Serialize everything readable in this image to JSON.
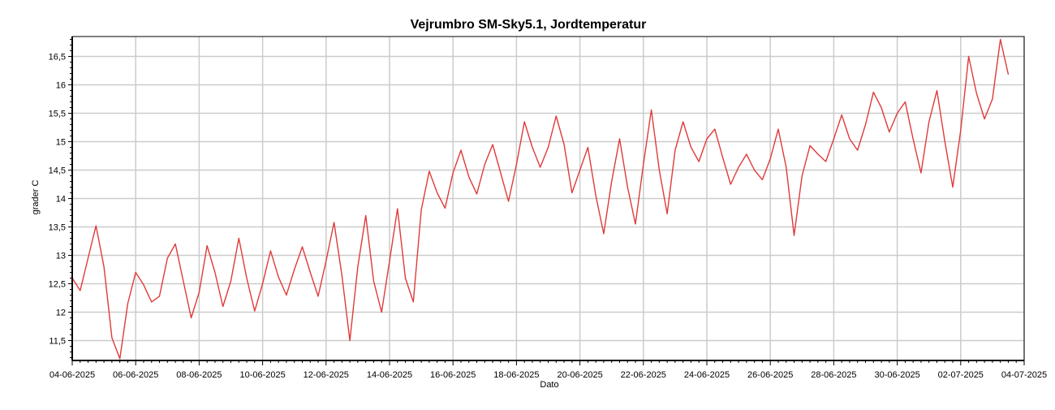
{
  "chart_data": {
    "type": "line",
    "title": "Vejrumbro SM-Sky5.1, Jordtemperatur",
    "xlabel": "Dato",
    "ylabel": "grader C",
    "x_ticks": [
      "04-06-2025",
      "06-06-2025",
      "08-06-2025",
      "10-06-2025",
      "12-06-2025",
      "14-06-2025",
      "16-06-2025",
      "18-06-2025",
      "20-06-2025",
      "22-06-2025",
      "24-06-2025",
      "26-06-2025",
      "28-06-2025",
      "30-06-2025",
      "02-07-2025",
      "04-07-2025"
    ],
    "y_ticks": [
      "11,5",
      "12",
      "12,5",
      "13",
      "13,5",
      "14",
      "14,5",
      "15",
      "15,5",
      "16",
      "16,5"
    ],
    "y_tick_values": [
      11.5,
      12,
      12.5,
      13,
      13.5,
      14,
      14.5,
      15,
      15.5,
      16,
      16.5
    ],
    "xlim": [
      "2025-06-04",
      "2025-07-04"
    ],
    "ylim": [
      11.15,
      16.85
    ],
    "grid": true,
    "colors": {
      "line": "#e03a3a",
      "grid": "#cccccc",
      "axis": "#000000"
    },
    "series": [
      {
        "x": [
          "2025-06-04 00:00",
          "2025-06-04 06:00",
          "2025-06-04 12:00",
          "2025-06-04 18:00",
          "2025-06-05 00:00",
          "2025-06-05 06:00",
          "2025-06-05 12:00",
          "2025-06-05 18:00",
          "2025-06-06 00:00",
          "2025-06-06 06:00",
          "2025-06-06 12:00",
          "2025-06-06 18:00",
          "2025-06-07 00:00",
          "2025-06-07 06:00",
          "2025-06-07 12:00",
          "2025-06-07 18:00",
          "2025-06-08 00:00",
          "2025-06-08 06:00",
          "2025-06-08 12:00",
          "2025-06-08 18:00",
          "2025-06-09 00:00",
          "2025-06-09 06:00",
          "2025-06-09 12:00",
          "2025-06-09 18:00",
          "2025-06-10 00:00",
          "2025-06-10 06:00",
          "2025-06-10 12:00",
          "2025-06-10 18:00",
          "2025-06-11 00:00",
          "2025-06-11 06:00",
          "2025-06-11 12:00",
          "2025-06-11 18:00",
          "2025-06-12 00:00",
          "2025-06-12 06:00",
          "2025-06-12 12:00",
          "2025-06-12 18:00",
          "2025-06-13 00:00",
          "2025-06-13 06:00",
          "2025-06-13 12:00",
          "2025-06-13 18:00",
          "2025-06-14 00:00",
          "2025-06-14 06:00",
          "2025-06-14 12:00",
          "2025-06-14 18:00",
          "2025-06-15 00:00",
          "2025-06-15 06:00",
          "2025-06-15 12:00",
          "2025-06-15 18:00",
          "2025-06-16 00:00",
          "2025-06-16 06:00",
          "2025-06-16 12:00",
          "2025-06-16 18:00",
          "2025-06-17 00:00",
          "2025-06-17 06:00",
          "2025-06-17 12:00",
          "2025-06-17 18:00",
          "2025-06-18 00:00",
          "2025-06-18 06:00",
          "2025-06-18 12:00",
          "2025-06-18 18:00",
          "2025-06-19 00:00",
          "2025-06-19 06:00",
          "2025-06-19 12:00",
          "2025-06-19 18:00",
          "2025-06-20 00:00",
          "2025-06-20 06:00",
          "2025-06-20 12:00",
          "2025-06-20 18:00",
          "2025-06-21 00:00",
          "2025-06-21 06:00",
          "2025-06-21 12:00",
          "2025-06-21 18:00",
          "2025-06-22 00:00",
          "2025-06-22 06:00",
          "2025-06-22 12:00",
          "2025-06-22 18:00",
          "2025-06-23 00:00",
          "2025-06-23 06:00",
          "2025-06-23 12:00",
          "2025-06-23 18:00",
          "2025-06-24 00:00",
          "2025-06-24 06:00",
          "2025-06-24 12:00",
          "2025-06-24 18:00",
          "2025-06-25 00:00",
          "2025-06-25 06:00",
          "2025-06-25 12:00",
          "2025-06-25 18:00",
          "2025-06-26 00:00",
          "2025-06-26 06:00",
          "2025-06-26 12:00",
          "2025-06-26 18:00",
          "2025-06-27 00:00",
          "2025-06-27 06:00",
          "2025-06-27 12:00",
          "2025-06-27 18:00",
          "2025-06-28 00:00",
          "2025-06-28 06:00",
          "2025-06-28 12:00",
          "2025-06-28 18:00",
          "2025-06-29 00:00",
          "2025-06-29 06:00",
          "2025-06-29 12:00",
          "2025-06-29 18:00",
          "2025-06-30 00:00",
          "2025-06-30 06:00",
          "2025-06-30 12:00",
          "2025-06-30 18:00",
          "2025-07-01 00:00",
          "2025-07-01 06:00",
          "2025-07-01 12:00",
          "2025-07-01 18:00",
          "2025-07-02 00:00",
          "2025-07-02 06:00",
          "2025-07-02 12:00",
          "2025-07-02 18:00",
          "2025-07-03 00:00",
          "2025-07-03 06:00",
          "2025-07-03 12:00"
        ],
        "values": [
          12.6,
          12.38,
          12.95,
          13.52,
          12.8,
          11.55,
          11.18,
          12.15,
          12.7,
          12.48,
          12.18,
          12.28,
          12.95,
          13.2,
          12.55,
          11.9,
          12.35,
          13.17,
          12.7,
          12.1,
          12.55,
          13.3,
          12.6,
          12.02,
          12.5,
          13.08,
          12.62,
          12.3,
          12.75,
          13.15,
          12.7,
          12.28,
          12.9,
          13.58,
          12.65,
          11.5,
          12.8,
          13.7,
          12.55,
          12.0,
          12.9,
          13.82,
          12.6,
          12.18,
          13.8,
          14.48,
          14.1,
          13.83,
          14.45,
          14.85,
          14.38,
          14.08,
          14.6,
          14.95,
          14.45,
          13.95,
          14.6,
          15.35,
          14.9,
          14.55,
          14.9,
          15.45,
          14.95,
          14.1,
          14.5,
          14.9,
          14.05,
          13.38,
          14.3,
          15.05,
          14.2,
          13.55,
          14.6,
          15.56,
          14.5,
          13.73,
          14.85,
          15.35,
          14.9,
          14.65,
          15.05,
          15.22,
          14.72,
          14.25,
          14.55,
          14.78,
          14.5,
          14.33,
          14.7,
          15.22,
          14.55,
          13.35,
          14.4,
          14.93,
          14.78,
          14.65,
          15.05,
          15.47,
          15.05,
          14.85,
          15.3,
          15.87,
          15.6,
          15.17,
          15.5,
          15.7,
          15.05,
          14.45,
          15.35,
          15.9,
          15.0,
          14.2,
          15.2,
          16.5,
          15.85,
          15.4,
          15.75,
          16.8,
          16.18
        ]
      }
    ]
  }
}
